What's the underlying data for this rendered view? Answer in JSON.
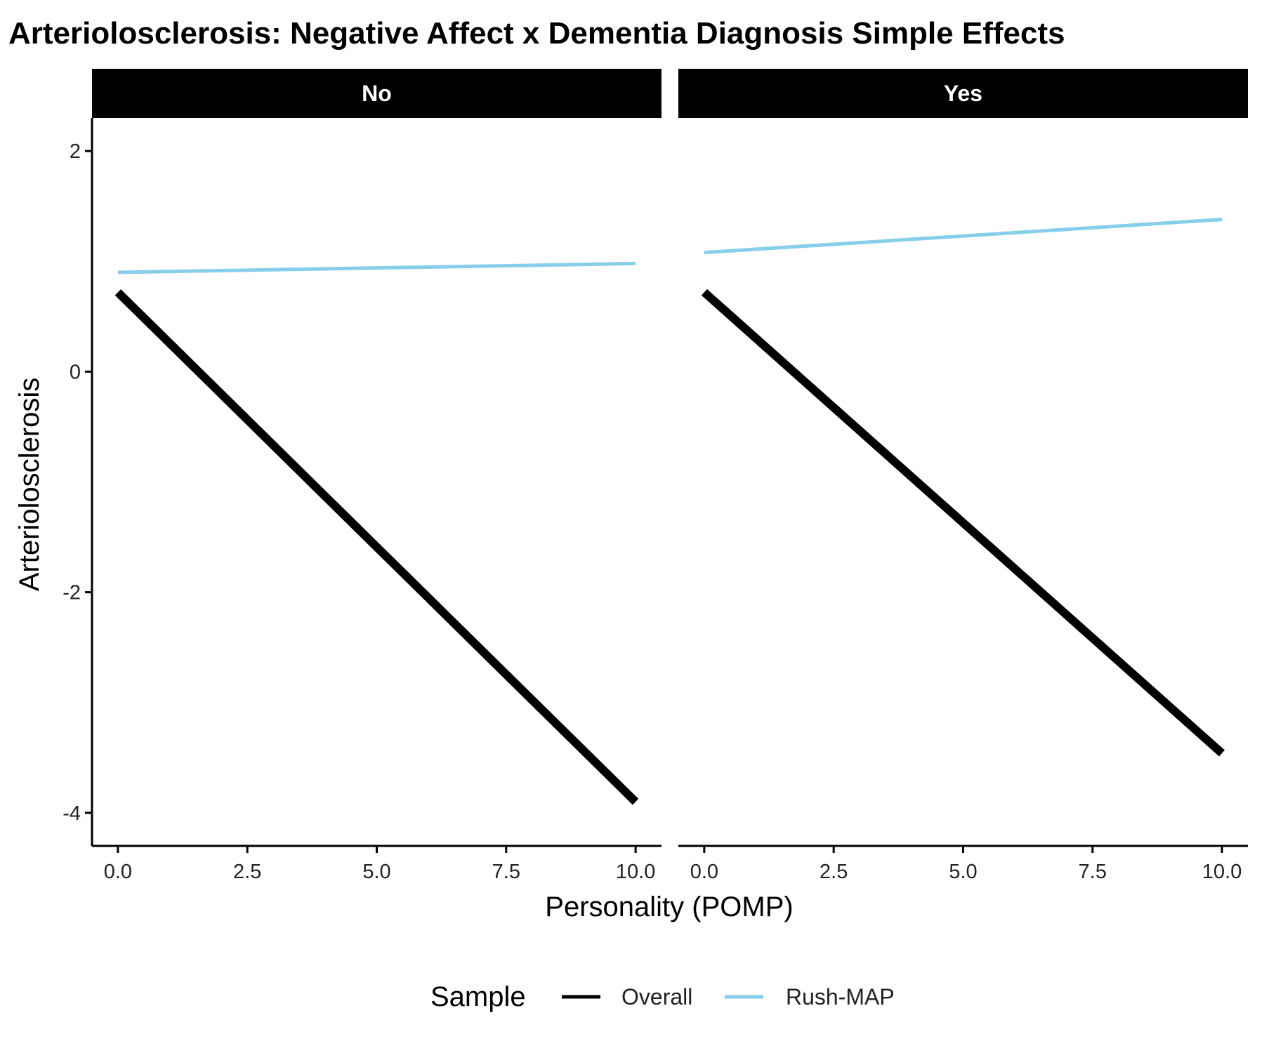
{
  "chart_data": {
    "type": "line",
    "title": "Arteriolosclerosis: Negative Affect x Dementia Diagnosis Simple Effects",
    "xlabel": "Personality (POMP)",
    "ylabel": "Arteriolosclerosis",
    "xlim": [
      -0.5,
      10.5
    ],
    "ylim": [
      -4.3,
      2.3
    ],
    "x_ticks": [
      0,
      2.5,
      5,
      7.5,
      10
    ],
    "x_tick_labels": [
      "0.0",
      "2.5",
      "5.0",
      "7.5",
      "10.0"
    ],
    "y_ticks": [
      -4,
      -2,
      0,
      2
    ],
    "y_tick_labels": [
      "-4",
      "-2",
      "0",
      "2"
    ],
    "grid": false,
    "legend": {
      "title": "Sample",
      "position": "bottom",
      "entries": [
        "Overall",
        "Rush-MAP"
      ]
    },
    "facet_label": "Dementia Diagnosis",
    "panels": [
      {
        "label": "No",
        "series": [
          {
            "name": "Overall",
            "x": [
              0,
              10
            ],
            "y": [
              0.72,
              -3.9
            ],
            "color": "#000000"
          },
          {
            "name": "Rush-MAP",
            "x": [
              0,
              10
            ],
            "y": [
              0.9,
              0.98
            ],
            "color": "#87CEEB"
          }
        ]
      },
      {
        "label": "Yes",
        "series": [
          {
            "name": "Overall",
            "x": [
              0,
              10
            ],
            "y": [
              0.72,
              -3.46
            ],
            "color": "#000000"
          },
          {
            "name": "Rush-MAP",
            "x": [
              0,
              10
            ],
            "y": [
              1.08,
              1.38
            ],
            "color": "#87CEEB"
          }
        ]
      }
    ]
  }
}
